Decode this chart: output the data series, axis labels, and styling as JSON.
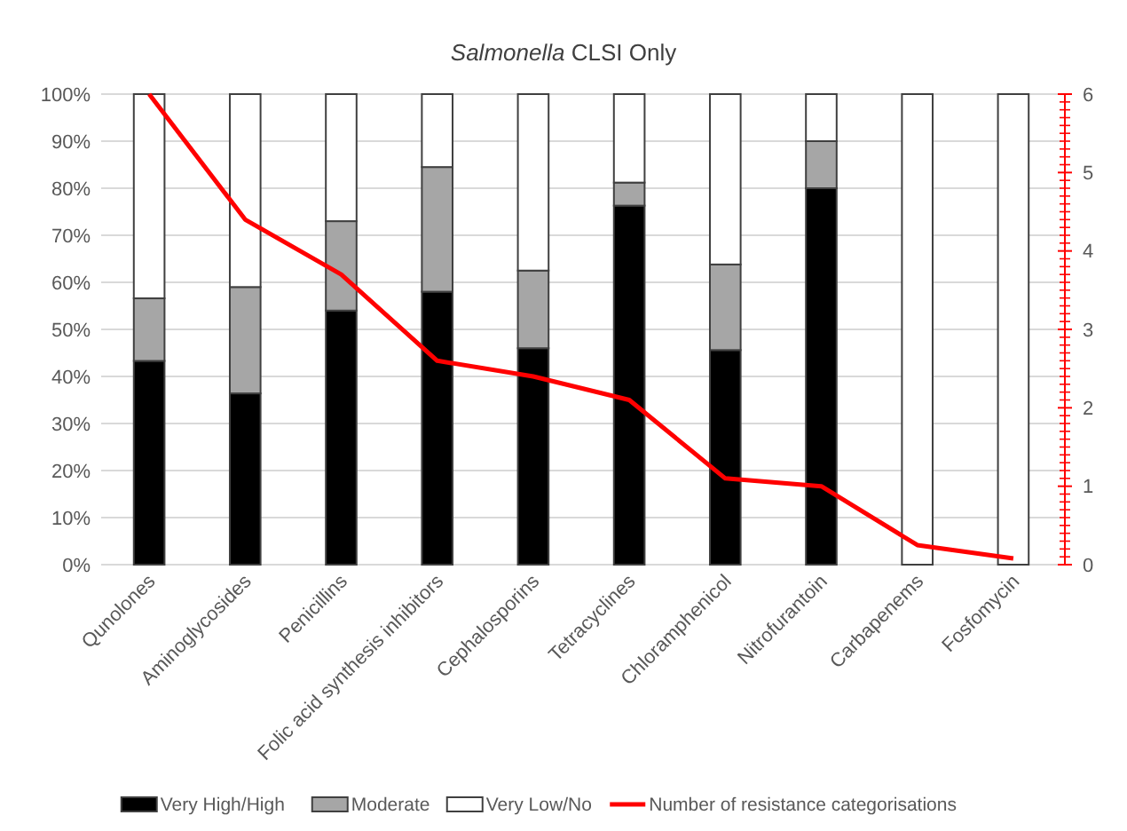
{
  "chart_data": {
    "type": "bar",
    "title": "Salmonella CLSI Only",
    "stacked": true,
    "categories": [
      "Qunolones",
      "Aminoglycosides",
      "Penicillins",
      "Folic acid synthesis inhibitors",
      "Cephalosporins",
      "Tetracyclines",
      "Chloramphenicol",
      "Nitrofurantoin",
      "Carbapenems",
      "Fosfomycin"
    ],
    "series": [
      {
        "name": "Very High/High",
        "color": "#000000",
        "values": [
          43.3,
          36.4,
          54,
          58,
          46,
          76.3,
          45.6,
          80,
          0,
          0
        ]
      },
      {
        "name": "Moderate",
        "color": "#a6a6a6",
        "values": [
          13.3,
          22.6,
          19,
          26.5,
          16.5,
          4.9,
          18.2,
          10,
          0,
          0
        ]
      },
      {
        "name": "Very Low/No",
        "color": "#ffffff",
        "values": [
          43.4,
          41,
          27,
          15.5,
          37.5,
          18.8,
          36.2,
          10,
          100,
          100
        ]
      },
      {
        "name": "Number of resistance categorisations",
        "type": "line",
        "axis": "y2",
        "color": "#ff0000",
        "values": [
          6,
          4.4,
          3.7,
          2.6,
          2.4,
          2.1,
          1.1,
          1.0,
          0.25,
          0.08
        ]
      }
    ],
    "ylim": [
      0,
      100
    ],
    "yticks": [
      {
        "value": 0,
        "label": "0%"
      },
      {
        "value": 10,
        "label": "10%"
      },
      {
        "value": 20,
        "label": "20%"
      },
      {
        "value": 30,
        "label": "30%"
      },
      {
        "value": 40,
        "label": "40%"
      },
      {
        "value": 50,
        "label": "50%"
      },
      {
        "value": 60,
        "label": "60%"
      },
      {
        "value": 70,
        "label": "70%"
      },
      {
        "value": 80,
        "label": "80%"
      },
      {
        "value": 90,
        "label": "90%"
      },
      {
        "value": 100,
        "label": "100%"
      }
    ],
    "y2lim": [
      0,
      6
    ],
    "y2ticks": [
      0,
      1,
      2,
      3,
      4,
      5,
      6
    ],
    "grid": "y",
    "legend": "bottom",
    "marker": "none"
  }
}
